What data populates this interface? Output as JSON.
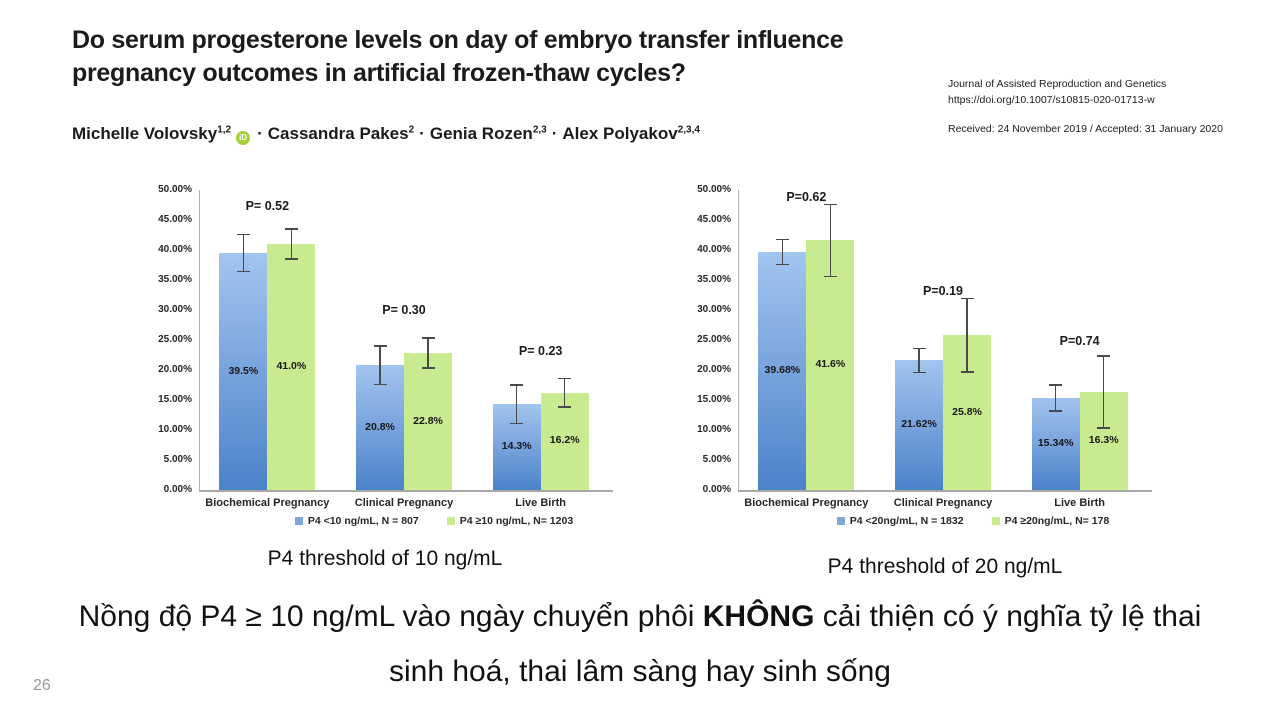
{
  "paper": {
    "title_line1": "Do serum progesterone levels on day of embryo transfer influence",
    "title_line2": "pregnancy outcomes in artificial frozen-thaw cycles?",
    "authors": [
      {
        "name": "Michelle Volovsky",
        "sup": "1,2",
        "orcid": true
      },
      {
        "name": "Cassandra Pakes",
        "sup": "2",
        "orcid": false
      },
      {
        "name": "Genia Rozen",
        "sup": "2,3",
        "orcid": false
      },
      {
        "name": "Alex Polyakov",
        "sup": "2,3,4",
        "orcid": false
      }
    ],
    "author_separator": "·",
    "orcid_label": "iD",
    "journal_name": "Journal of Assisted Reproduction and Genetics",
    "doi": "https://doi.org/10.1007/s10815-020-01713-w",
    "received_accepted": "Received: 24 November 2019 / Accepted: 31 January 2020"
  },
  "chart_data": [
    {
      "type": "bar",
      "title": "P4 threshold of 10 ng/mL",
      "categories": [
        "Biochemical Pregnancy",
        "Clinical Pregnancy",
        "Live Birth"
      ],
      "series": [
        {
          "name": "P4 <10 ng/mL, N = 807",
          "color_key": "blue",
          "values": [
            39.5,
            20.8,
            14.3
          ],
          "value_labels": [
            "39.5%",
            "20.8%",
            "14.3%"
          ],
          "error": [
            3.1,
            3.2,
            3.2
          ]
        },
        {
          "name": "P4 ≥10 ng/mL, N= 1203",
          "color_key": "green",
          "values": [
            41.0,
            22.8,
            16.2
          ],
          "value_labels": [
            "41.0%",
            "22.8%",
            "16.2%"
          ],
          "error": [
            2.5,
            2.5,
            2.4
          ]
        }
      ],
      "p_labels": [
        {
          "text": "P= 0.52",
          "y": 47.2
        },
        {
          "text": "P= 0.30",
          "y": 29.8
        },
        {
          "text": "P= 0.23",
          "y": 23.0
        }
      ],
      "ylim": [
        0,
        50
      ],
      "ytick_step": 5,
      "grid": false,
      "legend_position": "bottom"
    },
    {
      "type": "bar",
      "title": "P4 threshold of 20 ng/mL",
      "categories": [
        "Biochemical Pregnancy",
        "Clinical Pregnancy",
        "Live Birth"
      ],
      "series": [
        {
          "name": "P4 <20ng/mL, N = 1832",
          "color_key": "blue",
          "values": [
            39.68,
            21.62,
            15.34
          ],
          "value_labels": [
            "39.68%",
            "21.62%",
            "15.34%"
          ],
          "error": [
            2.1,
            2.0,
            2.2
          ]
        },
        {
          "name": "P4 ≥20ng/mL, N= 178",
          "color_key": "green",
          "values": [
            41.6,
            25.8,
            16.3
          ],
          "value_labels": [
            "41.6%",
            "25.8%",
            "16.3%"
          ],
          "error": [
            6.0,
            6.1,
            6.0
          ]
        }
      ],
      "p_labels": [
        {
          "text": "P=0.62",
          "y": 48.7
        },
        {
          "text": "P=0.19",
          "y": 33.0
        },
        {
          "text": "P=0.74",
          "y": 24.7
        }
      ],
      "ylim": [
        0,
        50
      ],
      "ytick_step": 5,
      "grid": false,
      "legend_position": "bottom"
    }
  ],
  "slide": {
    "caption_left": "P4 threshold of 10 ng/mL",
    "caption_right": "P4 threshold of 20 ng/mL",
    "conclusion_pre": "Nồng độ P4 ≥ 10 ng/mL vào ngày chuyển phôi ",
    "conclusion_bold": "KHÔNG",
    "conclusion_post": " cải thiện có ý nghĩa tỷ lệ thai",
    "conclusion_line2": "sinh hoá, thai lâm sàng hay sinh sống",
    "page_number": "26"
  },
  "colors": {
    "bar_blue_top": "#A3C5EF",
    "bar_blue_bottom": "#4C82CA",
    "bar_green": "#C9EB8F",
    "legend_blue": "#7FA8DC",
    "error_bar": "#4A4A4A",
    "axis": "#A8A8A8",
    "orcid_green": "#A6CE39"
  }
}
